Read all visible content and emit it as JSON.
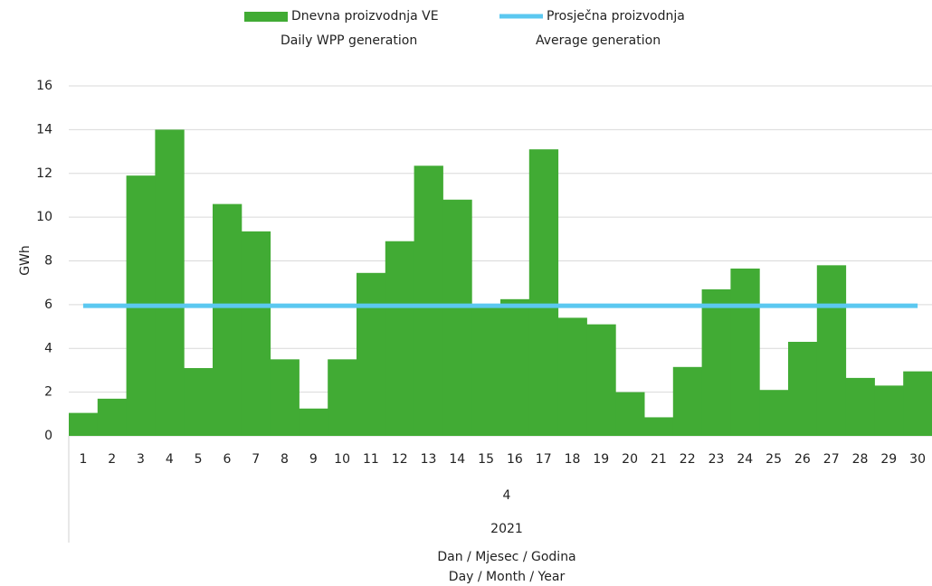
{
  "chart_data": {
    "type": "bar",
    "categories": [
      1,
      2,
      3,
      4,
      5,
      6,
      7,
      8,
      9,
      10,
      11,
      12,
      13,
      14,
      15,
      16,
      17,
      18,
      19,
      20,
      21,
      22,
      23,
      24,
      25,
      26,
      27,
      28,
      29,
      30
    ],
    "series": [
      {
        "name": [
          "Dnevna proizvodnja VE",
          "Daily WPP generation"
        ],
        "color": "#41ab34",
        "values": [
          1.05,
          1.7,
          11.9,
          14.0,
          3.1,
          10.6,
          9.35,
          3.5,
          1.25,
          3.5,
          7.45,
          8.9,
          12.35,
          10.8,
          6.0,
          6.25,
          13.1,
          5.4,
          5.1,
          2.0,
          0.85,
          3.15,
          6.7,
          7.65,
          2.1,
          4.3,
          7.8,
          2.65,
          2.3,
          2.95
        ]
      },
      {
        "name": [
          "Prosječna proizvodnja",
          "Average generation"
        ],
        "color": "#5bc8f0",
        "type": "line",
        "values": [
          5.95,
          5.95,
          5.95,
          5.95,
          5.95,
          5.95,
          5.95,
          5.95,
          5.95,
          5.95,
          5.95,
          5.95,
          5.95,
          5.95,
          5.95,
          5.95,
          5.95,
          5.95,
          5.95,
          5.95,
          5.95,
          5.95,
          5.95,
          5.95,
          5.95,
          5.95,
          5.95,
          5.95,
          5.95,
          5.95
        ]
      }
    ],
    "month_label": "4",
    "year_label": "2021",
    "ylabel": "GWh",
    "xlabel": [
      "Dan / Mjesec / Godina",
      "Day / Month / Year"
    ],
    "ylim": [
      0,
      16
    ],
    "yticks": [
      0,
      2,
      4,
      6,
      8,
      10,
      12,
      14,
      16
    ],
    "grid": true
  }
}
